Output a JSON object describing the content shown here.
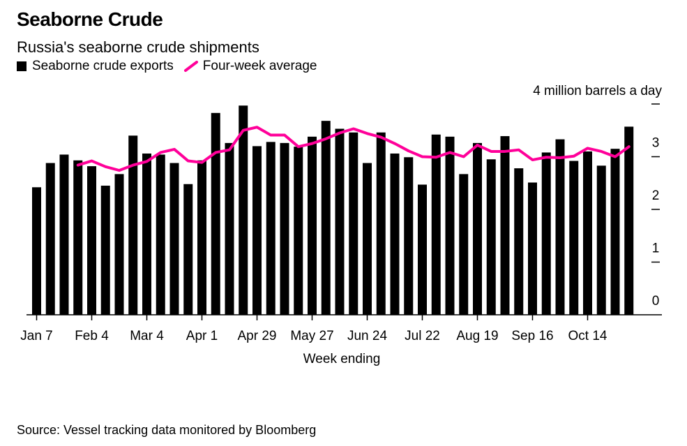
{
  "title": "Seaborne Crude",
  "subtitle": "Russia's seaborne crude shipments",
  "legend": {
    "bars_label": "Seaborne crude exports",
    "line_label": "Four-week average"
  },
  "source": "Source: Vessel tracking data monitored by Bloomberg",
  "colors": {
    "bars": "#000000",
    "line": "#ff0099",
    "axis": "#000000"
  },
  "chart_data": {
    "type": "bar",
    "title": "Seaborne Crude",
    "subtitle": "Russia's seaborne crude shipments",
    "xlabel": "Week ending",
    "ylabel": "4 million barrels a day",
    "ylim": [
      0,
      4
    ],
    "yticks": [
      0,
      1,
      2,
      3,
      4
    ],
    "ytick_labels": [
      "0",
      "1",
      "2",
      "3",
      ""
    ],
    "xtick_labels": [
      {
        "index": 0,
        "label": "Jan 7"
      },
      {
        "index": 4,
        "label": "Feb 4"
      },
      {
        "index": 8,
        "label": "Mar 4"
      },
      {
        "index": 12,
        "label": "Apr 1"
      },
      {
        "index": 16,
        "label": "Apr 29"
      },
      {
        "index": 20,
        "label": "May 27"
      },
      {
        "index": 24,
        "label": "Jun 24"
      },
      {
        "index": 28,
        "label": "Jul 22"
      },
      {
        "index": 32,
        "label": "Aug 19"
      },
      {
        "index": 36,
        "label": "Sep 16"
      },
      {
        "index": 40,
        "label": "Oct 14"
      }
    ],
    "grid": false,
    "legend_position": "top-left",
    "series": [
      {
        "name": "Seaborne crude exports",
        "type": "bar",
        "values": [
          2.42,
          2.88,
          3.04,
          2.93,
          2.82,
          2.45,
          2.67,
          3.4,
          3.06,
          3.04,
          2.88,
          2.48,
          2.93,
          3.83,
          3.26,
          3.97,
          3.2,
          3.28,
          3.26,
          3.19,
          3.38,
          3.68,
          3.53,
          3.46,
          2.88,
          3.46,
          3.06,
          2.99,
          2.47,
          3.42,
          3.38,
          2.67,
          3.26,
          2.95,
          3.39,
          2.78,
          2.51,
          3.08,
          3.33,
          2.92,
          3.1,
          2.83,
          3.15,
          3.57
        ]
      },
      {
        "name": "Four-week average",
        "type": "line",
        "start_index": 3,
        "values": [
          2.84,
          2.92,
          2.81,
          2.74,
          2.84,
          2.91,
          3.08,
          3.14,
          2.92,
          2.89,
          3.08,
          3.13,
          3.5,
          3.56,
          3.41,
          3.41,
          3.19,
          3.25,
          3.34,
          3.45,
          3.53,
          3.44,
          3.37,
          3.25,
          3.11,
          3.0,
          2.99,
          3.08,
          3.0,
          3.22,
          3.1,
          3.1,
          3.13,
          2.94,
          2.99,
          2.98,
          3.01,
          3.16,
          3.1,
          3.0,
          3.19
        ]
      }
    ]
  }
}
